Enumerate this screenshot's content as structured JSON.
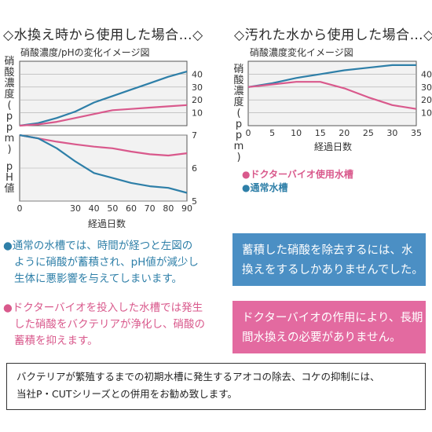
{
  "left_heading": "◇水換え時から使用した場合…◇",
  "right_heading": "◇汚れた水から使用した場合…◇",
  "chart_data": [
    {
      "type": "line",
      "title": "硝酸濃度/pHの変化イメージ図",
      "ylabel": "硝酸濃度 (ppm)",
      "x": [
        0,
        10,
        20,
        30,
        40,
        50,
        60,
        70,
        80,
        90
      ],
      "ylim": [
        0,
        50
      ],
      "yticks": [
        10,
        20,
        30,
        40
      ],
      "series": [
        {
          "color": "#2e7fa8",
          "values": [
            0,
            2,
            6,
            11,
            18,
            23,
            28,
            33,
            38,
            42
          ]
        },
        {
          "color": "#d9598c",
          "values": [
            0,
            1,
            3,
            6,
            9,
            12,
            13,
            14,
            15,
            16
          ]
        }
      ]
    },
    {
      "type": "line",
      "ylabel": "pH値",
      "xlabel": "経過日数",
      "x": [
        0,
        10,
        20,
        30,
        40,
        50,
        60,
        70,
        80,
        90
      ],
      "xticks": [
        0,
        30,
        40,
        50,
        60,
        70,
        80,
        90
      ],
      "ylim": [
        5,
        7
      ],
      "yticks": [
        5,
        6,
        7
      ],
      "series": [
        {
          "color": "#d9598c",
          "values": [
            7.0,
            6.9,
            6.8,
            6.72,
            6.65,
            6.6,
            6.5,
            6.42,
            6.38,
            6.45
          ]
        },
        {
          "color": "#2e7fa8",
          "values": [
            7.0,
            6.9,
            6.6,
            6.2,
            5.85,
            5.7,
            5.55,
            5.45,
            5.4,
            5.25
          ]
        }
      ]
    },
    {
      "type": "line",
      "title": "硝酸濃度変化イメージ図",
      "ylabel": "硝酸濃度 (ppm)",
      "xlabel": "経過日数",
      "x": [
        0,
        5,
        10,
        15,
        20,
        25,
        30,
        35
      ],
      "xticks": [
        0,
        5,
        10,
        15,
        20,
        25,
        30,
        35
      ],
      "ylim": [
        0,
        50
      ],
      "yticks": [
        10,
        20,
        30,
        40
      ],
      "series": [
        {
          "color": "#2e7fa8",
          "values": [
            30,
            33,
            37,
            40,
            43,
            45,
            47,
            47
          ]
        },
        {
          "color": "#d9598c",
          "values": [
            30,
            32,
            34,
            34,
            29,
            22,
            16,
            13
          ]
        }
      ]
    }
  ],
  "legend": {
    "items": [
      {
        "label": "ドクターバイオ使用水槽",
        "color": "#d9598c"
      },
      {
        "label": "通常水槽",
        "color": "#2e7fa8"
      }
    ]
  },
  "bullets": [
    {
      "color": "#2e7fa8",
      "lines": [
        "通常の水槽では、時間が経つと左図の",
        "ように硝酸が蓄積され、pH値が減少し",
        "生体に悪影響を与えてしまいます。"
      ]
    },
    {
      "color": "#d9598c",
      "lines": [
        "ドクターバイオを投入した水槽では発生",
        "した硝酸をバクテリアが浄化し、硝酸の",
        "蓄積を抑えます。"
      ]
    }
  ],
  "boxes": [
    {
      "color": "#4b8fc4",
      "lines": [
        "蓄積した硝酸を除去するには、水",
        "換えをするしかありませんでした。"
      ]
    },
    {
      "color": "#e36aa0",
      "lines": [
        "ドクターバイオの作用により、長期",
        "間水換えの必要がありません。"
      ]
    }
  ],
  "note": {
    "lines": [
      "バクテリアが繁殖するまでの初期水槽に発生するアオコの除去、コケの抑制には、",
      "当社P・CUTシリーズとの併用をお勧め致します。"
    ]
  }
}
